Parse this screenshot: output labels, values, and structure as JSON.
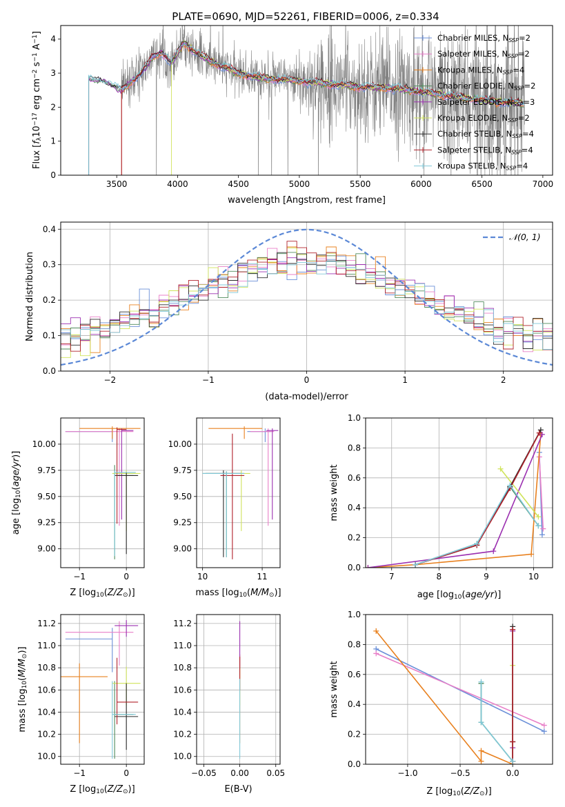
{
  "figure_title": "PLATE=0690, MJD=52261, FIBERID=0006, z=0.334",
  "colors": {
    "Chabrier MILES": "#6a8fd8",
    "Salpeter MILES": "#e87fc8",
    "Kroupa MILES": "#e8801e",
    "Chabrier ELODIE": "#4e8a5a",
    "Salpeter ELODIE": "#9b2fb0",
    "Kroupa ELODIE": "#cfe35a",
    "Chabrier STELIB": "#2a2a2a",
    "Salpeter STELIB": "#b0202a",
    "Kroupa STELIB": "#7fc8d8",
    "data": "#808080",
    "gauss": "#5b88d6"
  },
  "chart_data": [
    {
      "id": "spectrum",
      "type": "line",
      "xlabel": "wavelength [Angstrom, rest frame]",
      "ylabel_main": "Flux [",
      "ylabel_f": "f",
      "ylabel_lambda": "λ",
      "ylabel_mid": "10",
      "ylabel_exp1": "−17",
      "ylabel_units": " erg cm",
      "ylabel_exp2": "−2",
      "ylabel_s": " s",
      "ylabel_exp3": "−1",
      "ylabel_A": " A",
      "ylabel_exp4": "−1",
      "ylabel_end": "]",
      "xlim": [
        3040,
        7080
      ],
      "ylim": [
        0,
        4.4
      ],
      "xticks": [
        3500,
        4000,
        4500,
        5000,
        5500,
        6000,
        6500,
        7000
      ],
      "yticks": [
        0,
        1,
        2,
        3,
        4
      ],
      "legend_position": "top-right",
      "legend": [
        {
          "name": "Chabrier MILES",
          "nssp": "2"
        },
        {
          "name": "Salpeter MILES",
          "nssp": "2"
        },
        {
          "name": "Kroupa MILES",
          "nssp": "4"
        },
        {
          "name": "Chabrier ELODIE",
          "nssp": "2"
        },
        {
          "name": "Salpeter ELODIE",
          "nssp": "3"
        },
        {
          "name": "Kroupa ELODIE",
          "nssp": "2"
        },
        {
          "name": "Chabrier STELIB",
          "nssp": "4"
        },
        {
          "name": "Salpeter STELIB",
          "nssp": "4"
        },
        {
          "name": "Kroupa STELIB",
          "nssp": "4"
        }
      ],
      "nssp_label": "N",
      "nssp_sub": "SSP",
      "model_start": {
        "Chabrier MILES": 3540,
        "Salpeter MILES": 3540,
        "Kroupa MILES": 3540,
        "Chabrier ELODIE": 3270,
        "Salpeter ELODIE": 3270,
        "Kroupa ELODIE": 3950,
        "Chabrier STELIB": 3270,
        "Salpeter STELIB": 3540,
        "Kroupa STELIB": 3270
      },
      "model_end": 6850,
      "continuum": [
        [
          3270,
          2.85
        ],
        [
          3400,
          2.75
        ],
        [
          3540,
          2.5
        ],
        [
          3700,
          3.0
        ],
        [
          3800,
          3.5
        ],
        [
          3870,
          3.6
        ],
        [
          3950,
          3.3
        ],
        [
          4050,
          3.9
        ],
        [
          4150,
          3.6
        ],
        [
          4300,
          3.3
        ],
        [
          4500,
          3.0
        ],
        [
          4700,
          2.85
        ],
        [
          4900,
          2.8
        ],
        [
          5200,
          2.7
        ],
        [
          5500,
          2.6
        ],
        [
          5800,
          2.55
        ],
        [
          6100,
          2.4
        ],
        [
          6500,
          2.2
        ],
        [
          6850,
          2.1
        ]
      ]
    },
    {
      "id": "residuals",
      "type": "histogram",
      "xlabel": "(data-model)/error",
      "ylabel": "Normed distribution",
      "xlim": [
        -2.5,
        2.5
      ],
      "ylim": [
        0,
        0.42
      ],
      "xticks": [
        -2,
        -1,
        0,
        1,
        2
      ],
      "yticks": [
        0.0,
        0.1,
        0.2,
        0.3,
        0.4
      ],
      "grid": true,
      "gauss_label": "𝒩(0, 1)",
      "legend_position": "top-right",
      "bin_width": 0.1
    },
    {
      "id": "age_vs_Z",
      "type": "errorbar",
      "xlabel": "Z [log",
      "xlabel_sub": "10",
      "xlabel_end": "(Z/Z",
      "xlabel_sun": "⊙",
      "xlabel_close": ")]",
      "ylabel": "age  [log",
      "ylabel_sub": "10",
      "ylabel_end": "(age/yr)]",
      "xlim": [
        -1.4,
        0.38
      ],
      "ylim": [
        8.82,
        10.25
      ],
      "xticks": [
        -1,
        0
      ],
      "yticks": [
        9.0,
        9.25,
        9.5,
        9.75,
        10.0
      ],
      "grid": true,
      "points": [
        {
          "model": "Chabrier MILES",
          "x": -0.3,
          "xerr": [
            1.0,
            0.0
          ],
          "y": 10.12,
          "yerr": [
            0.1,
            0.03
          ]
        },
        {
          "model": "Salpeter MILES",
          "x": -0.15,
          "xerr": [
            1.15,
            0.3
          ],
          "y": 10.12,
          "yerr": [
            0.9,
            0.03
          ]
        },
        {
          "model": "Kroupa MILES",
          "x": -0.3,
          "xerr": [
            0.7,
            0.6
          ],
          "y": 10.15,
          "yerr": [
            0.1,
            0.02
          ]
        },
        {
          "model": "Chabrier ELODIE",
          "x": -0.25,
          "xerr": [
            0.0,
            0.4
          ],
          "y": 9.7,
          "yerr": [
            0.8,
            0.1
          ]
        },
        {
          "model": "Salpeter ELODIE",
          "x": -0.1,
          "xerr": [
            0.0,
            0.25
          ],
          "y": 10.13,
          "yerr": [
            0.85,
            0.02
          ]
        },
        {
          "model": "Kroupa ELODIE",
          "x": 0.0,
          "xerr": [
            0.3,
            0.3
          ],
          "y": 9.72,
          "yerr": [
            0.55,
            0.03
          ]
        },
        {
          "model": "Chabrier STELIB",
          "x": 0.0,
          "xerr": [
            0.25,
            0.25
          ],
          "y": 9.7,
          "yerr": [
            0.75,
            0.03
          ]
        },
        {
          "model": "Salpeter STELIB",
          "x": -0.2,
          "xerr": [
            0.0,
            0.2
          ],
          "y": 10.14,
          "yerr": [
            0.9,
            0.02
          ]
        },
        {
          "model": "Kroupa STELIB",
          "x": -0.25,
          "xerr": [
            0.0,
            0.45
          ],
          "y": 9.73,
          "yerr": [
            0.8,
            0.02
          ]
        }
      ]
    },
    {
      "id": "age_vs_mass",
      "type": "errorbar",
      "xlabel": "mass [log",
      "xlabel_sub": "10",
      "xlabel_end": "(M/M",
      "xlabel_sun": "⊙",
      "xlabel_close": ")]",
      "xlim": [
        9.9,
        11.3
      ],
      "ylim": [
        8.82,
        10.25
      ],
      "xticks": [
        10,
        11
      ],
      "yticks": [
        9.0,
        9.25,
        9.5,
        9.75,
        10.0
      ],
      "grid": true,
      "points": [
        {
          "model": "Chabrier MILES",
          "x": 11.05,
          "xerr": [
            0.3,
            0.1
          ],
          "y": 10.12,
          "yerr": [
            0.1,
            0.03
          ]
        },
        {
          "model": "Salpeter MILES",
          "x": 11.1,
          "xerr": [
            0.3,
            0.1
          ],
          "y": 10.12,
          "yerr": [
            0.9,
            0.03
          ]
        },
        {
          "model": "Kroupa MILES",
          "x": 10.7,
          "xerr": [
            0.6,
            0.3
          ],
          "y": 10.15,
          "yerr": [
            0.1,
            0.02
          ]
        },
        {
          "model": "Chabrier ELODIE",
          "x": 10.4,
          "xerr": [
            0.4,
            0.3
          ],
          "y": 9.72,
          "yerr": [
            0.8,
            0.02
          ]
        },
        {
          "model": "Salpeter ELODIE",
          "x": 11.17,
          "xerr": [
            0.1,
            0.1
          ],
          "y": 10.13,
          "yerr": [
            0.85,
            0.02
          ]
        },
        {
          "model": "Kroupa ELODIE",
          "x": 10.65,
          "xerr": [
            0.2,
            0.15
          ],
          "y": 9.72,
          "yerr": [
            0.55,
            0.03
          ]
        },
        {
          "model": "Chabrier STELIB",
          "x": 10.35,
          "xerr": [
            0.3,
            0.3
          ],
          "y": 9.72,
          "yerr": [
            0.8,
            0.03
          ]
        },
        {
          "model": "Salpeter STELIB",
          "x": 10.5,
          "xerr": [
            0.2,
            0.2
          ],
          "y": 9.7,
          "yerr": [
            0.8,
            0.4
          ]
        },
        {
          "model": "Kroupa STELIB",
          "x": 10.4,
          "xerr": [
            0.4,
            0.3
          ],
          "y": 9.72,
          "yerr": [
            0.8,
            0.02
          ]
        }
      ]
    },
    {
      "id": "weight_vs_age",
      "type": "line",
      "xlabel": "age  [log",
      "xlabel_sub": "10",
      "xlabel_end": "(age/yr)]",
      "ylabel": "mass weight",
      "xlim": [
        6.45,
        10.4
      ],
      "ylim": [
        0,
        1.0
      ],
      "xticks": [
        7,
        8,
        9,
        10
      ],
      "yticks": [
        0.0,
        0.2,
        0.4,
        0.6,
        0.8,
        1.0
      ],
      "grid": true,
      "series": [
        {
          "name": "Chabrier MILES",
          "points": [
            [
              10.12,
              0.77
            ],
            [
              10.18,
              0.22
            ]
          ]
        },
        {
          "name": "Salpeter MILES",
          "points": [
            [
              10.12,
              0.74
            ],
            [
              10.2,
              0.26
            ]
          ]
        },
        {
          "name": "Kroupa MILES",
          "points": [
            [
              6.5,
              0.0
            ],
            [
              7.5,
              0.02
            ],
            [
              9.95,
              0.09
            ],
            [
              10.15,
              0.89
            ]
          ]
        },
        {
          "name": "Chabrier ELODIE",
          "points": [
            [
              7.5,
              0.02
            ],
            [
              8.8,
              0.16
            ],
            [
              9.5,
              0.54
            ],
            [
              10.1,
              0.28
            ]
          ]
        },
        {
          "name": "Salpeter ELODIE",
          "points": [
            [
              6.5,
              0.0
            ],
            [
              9.15,
              0.11
            ],
            [
              10.18,
              0.89
            ]
          ]
        },
        {
          "name": "Kroupa ELODIE",
          "points": [
            [
              9.3,
              0.66
            ],
            [
              10.1,
              0.34
            ]
          ]
        },
        {
          "name": "Chabrier STELIB",
          "points": [
            [
              7.5,
              0.02
            ],
            [
              8.8,
              0.15
            ],
            [
              9.5,
              0.54
            ],
            [
              10.15,
              0.92
            ]
          ]
        },
        {
          "name": "Salpeter STELIB",
          "points": [
            [
              7.5,
              0.02
            ],
            [
              8.8,
              0.15
            ],
            [
              9.5,
              0.53
            ],
            [
              10.12,
              0.9
            ]
          ]
        },
        {
          "name": "Kroupa STELIB",
          "points": [
            [
              7.5,
              0.02
            ],
            [
              8.8,
              0.16
            ],
            [
              9.5,
              0.55
            ],
            [
              10.1,
              0.28
            ]
          ]
        }
      ]
    },
    {
      "id": "mass_vs_Z",
      "type": "errorbar",
      "xlabel": "Z [log",
      "xlabel_sub": "10",
      "xlabel_end": "(Z/Z",
      "xlabel_sun": "⊙",
      "xlabel_close": ")]",
      "ylabel": "mass [log",
      "ylabel_sub": "10",
      "ylabel_end": "(M/M",
      "ylabel_sun": "⊙",
      "ylabel_close": ")]",
      "xlim": [
        -1.4,
        0.38
      ],
      "ylim": [
        9.93,
        11.28
      ],
      "xticks": [
        -1,
        0
      ],
      "yticks": [
        10.0,
        10.2,
        10.4,
        10.6,
        10.8,
        11.0,
        11.2
      ],
      "grid": true,
      "points": [
        {
          "model": "Chabrier MILES",
          "x": -0.3,
          "xerr": [
            1.0,
            0.0
          ],
          "y": 11.06,
          "yerr": [
            0.3,
            0.1
          ]
        },
        {
          "model": "Salpeter MILES",
          "x": -0.15,
          "xerr": [
            1.15,
            0.3
          ],
          "y": 11.12,
          "yerr": [
            0.3,
            0.1
          ]
        },
        {
          "model": "Kroupa MILES",
          "x": -1.0,
          "xerr": [
            0.7,
            0.6
          ],
          "y": 10.72,
          "yerr": [
            0.6,
            0.12
          ]
        },
        {
          "model": "Chabrier ELODIE",
          "x": -0.25,
          "xerr": [
            0.0,
            0.4
          ],
          "y": 10.38,
          "yerr": [
            0.4,
            0.3
          ]
        },
        {
          "model": "Salpeter ELODIE",
          "x": 0.0,
          "xerr": [
            0.25,
            0.25
          ],
          "y": 11.18,
          "yerr": [
            0.1,
            0.05
          ]
        },
        {
          "model": "Kroupa ELODIE",
          "x": 0.0,
          "xerr": [
            0.3,
            0.3
          ],
          "y": 10.66,
          "yerr": [
            0.2,
            0.15
          ]
        },
        {
          "model": "Chabrier STELIB",
          "x": 0.0,
          "xerr": [
            0.25,
            0.25
          ],
          "y": 10.36,
          "yerr": [
            0.3,
            0.3
          ]
        },
        {
          "model": "Salpeter STELIB",
          "x": -0.2,
          "xerr": [
            0.0,
            0.45
          ],
          "y": 10.49,
          "yerr": [
            0.2,
            0.4
          ]
        },
        {
          "model": "Kroupa STELIB",
          "x": -0.3,
          "xerr": [
            0.0,
            0.5
          ],
          "y": 10.38,
          "yerr": [
            0.4,
            0.3
          ]
        }
      ]
    },
    {
      "id": "mass_vs_ebv",
      "type": "errorbar",
      "xlabel": "E(B-V)",
      "xlim": [
        -0.06,
        0.056
      ],
      "ylim": [
        9.93,
        11.28
      ],
      "xticks": [
        -0.05,
        0.0,
        0.05
      ],
      "xticklabels": [
        "−0.05",
        "0.00",
        "0.05"
      ],
      "yticks": [
        10.0,
        10.2,
        10.4,
        10.6,
        10.8,
        11.0,
        11.2
      ],
      "grid": true,
      "points": [
        {
          "model": "Kroupa MILES",
          "x": 0.0,
          "y": 10.72,
          "yerr": [
            0.6,
            0.2
          ]
        },
        {
          "model": "Salpeter ELODIE",
          "x": 0.0,
          "y": 11.0,
          "yerr": [
            0.2,
            0.22
          ]
        },
        {
          "model": "Kroupa ELODIE",
          "x": 0.0,
          "y": 10.66,
          "yerr": [
            0.2,
            0.15
          ]
        },
        {
          "model": "Salpeter STELIB",
          "x": 0.0,
          "y": 10.8,
          "yerr": [
            0.2,
            0.1
          ]
        },
        {
          "model": "Kroupa STELIB",
          "x": 0.0,
          "y": 10.4,
          "yerr": [
            0.42,
            0.3
          ]
        }
      ]
    },
    {
      "id": "weight_vs_Z",
      "type": "line",
      "xlabel": "Z [log",
      "xlabel_sub": "10",
      "xlabel_end": "(Z/Z",
      "xlabel_sun": "⊙",
      "xlabel_close": ")]",
      "ylabel": "mass weight",
      "xlim": [
        -1.4,
        0.38
      ],
      "ylim": [
        0,
        1.0
      ],
      "xticks": [
        -1.0,
        -0.5,
        0.0
      ],
      "xticklabels": [
        "−1.0",
        "−0.5",
        "0.0"
      ],
      "yticks": [
        0.0,
        0.2,
        0.4,
        0.6,
        0.8,
        1.0
      ],
      "grid": true,
      "series": [
        {
          "name": "Chabrier MILES",
          "points": [
            [
              -1.3,
              0.77
            ],
            [
              0.3,
              0.22
            ]
          ]
        },
        {
          "name": "Salpeter MILES",
          "points": [
            [
              -1.3,
              0.74
            ],
            [
              0.3,
              0.26
            ]
          ]
        },
        {
          "name": "Kroupa MILES",
          "points": [
            [
              -1.3,
              0.89
            ],
            [
              -0.3,
              0.02
            ],
            [
              -0.3,
              0.09
            ],
            [
              0.0,
              0.0
            ]
          ]
        },
        {
          "name": "Chabrier ELODIE",
          "points": [
            [
              -0.3,
              0.54
            ],
            [
              -0.3,
              0.28
            ],
            [
              0.0,
              0.02
            ]
          ]
        },
        {
          "name": "Salpeter ELODIE",
          "points": [
            [
              0.0,
              0.89
            ],
            [
              0.0,
              0.11
            ],
            [
              0.0,
              0.0
            ]
          ]
        },
        {
          "name": "Kroupa ELODIE",
          "points": [
            [
              0.0,
              0.66
            ],
            [
              0.0,
              0.0
            ]
          ]
        },
        {
          "name": "Chabrier STELIB",
          "points": [
            [
              0.0,
              0.92
            ],
            [
              0.0,
              0.15
            ],
            [
              0.0,
              0.02
            ]
          ]
        },
        {
          "name": "Salpeter STELIB",
          "points": [
            [
              0.0,
              0.9
            ],
            [
              0.0,
              0.15
            ],
            [
              0.0,
              0.02
            ]
          ]
        },
        {
          "name": "Kroupa STELIB",
          "points": [
            [
              -0.3,
              0.55
            ],
            [
              -0.3,
              0.28
            ],
            [
              0.0,
              0.02
            ]
          ]
        }
      ]
    }
  ]
}
